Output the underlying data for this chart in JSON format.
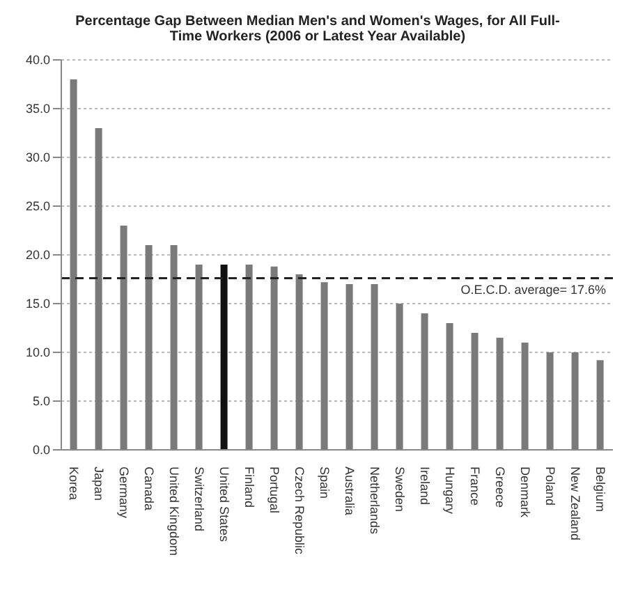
{
  "chart_data": {
    "type": "bar",
    "title": "Percentage Gap Between Median Men's and Women's Wages, for All Full-Time Workers (2006 or Latest Year Available)",
    "categories": [
      "Korea",
      "Japan",
      "Germany",
      "Canada",
      "United Kingdom",
      "Switzerland",
      "United States",
      "Finland",
      "Portugal",
      "Czech Republic",
      "Spain",
      "Australia",
      "Netherlands",
      "Sweden",
      "Ireland",
      "Hungary",
      "France",
      "Greece",
      "Denmark",
      "Poland",
      "New Zealand",
      "Belgium"
    ],
    "values": [
      38,
      33,
      23,
      21,
      21,
      19,
      19,
      19,
      18.8,
      18,
      17.2,
      17,
      17,
      15,
      14,
      13,
      12,
      11.5,
      11,
      10,
      10,
      9.2
    ],
    "colors": [
      "#7a7a7a",
      "#7a7a7a",
      "#7a7a7a",
      "#7a7a7a",
      "#7a7a7a",
      "#7a7a7a",
      "#111111",
      "#7a7a7a",
      "#7a7a7a",
      "#7a7a7a",
      "#7a7a7a",
      "#7a7a7a",
      "#7a7a7a",
      "#7a7a7a",
      "#7a7a7a",
      "#7a7a7a",
      "#7a7a7a",
      "#7a7a7a",
      "#7a7a7a",
      "#7a7a7a",
      "#7a7a7a",
      "#7a7a7a"
    ],
    "ylim": [
      0,
      40
    ],
    "yticks": [
      {
        "value": 0,
        "label": "0.0"
      },
      {
        "value": 5,
        "label": "5.0"
      },
      {
        "value": 10,
        "label": "10.0"
      },
      {
        "value": 15,
        "label": "15.0"
      },
      {
        "value": 20,
        "label": "20.0"
      },
      {
        "value": 25,
        "label": "25.0"
      },
      {
        "value": 30,
        "label": "30.0"
      },
      {
        "value": 35,
        "label": "35.0"
      },
      {
        "value": 40,
        "label": "40.0"
      }
    ],
    "grid": "y",
    "ref_lines": [
      {
        "axis": "y",
        "value": 17.6,
        "label": "O.E.C.D. average= 17.6%",
        "color": "#222222",
        "line_style": "dashed"
      }
    ]
  }
}
